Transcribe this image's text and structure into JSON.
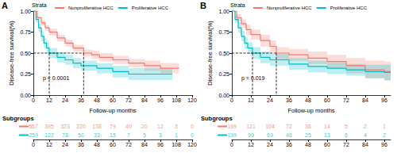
{
  "chart_data": [
    {
      "type": "line",
      "panel": "A",
      "line_style": "step",
      "legend": "top",
      "legend_title": "Strata",
      "grid": false,
      "y_label": "Disease-free survival(%)",
      "x_label": "Follow-up months",
      "xlim": [
        0,
        120
      ],
      "xticks": [
        0,
        12,
        24,
        36,
        48,
        60,
        72,
        84,
        96,
        108,
        120
      ],
      "ylim": [
        0,
        1
      ],
      "yticks": [
        {
          "value": 0,
          "label": "0.00"
        },
        {
          "value": 0.25,
          "label": "0.25"
        },
        {
          "value": 0.5,
          "label": "0.50"
        },
        {
          "value": 0.75,
          "label": "0.75"
        },
        {
          "value": 1,
          "label": "1.00"
        }
      ],
      "p_value": "p < 0.0001",
      "median_y": 0.5,
      "risk_table_title": "Subgroups",
      "series": [
        {
          "name": "Nonproliferative HCC",
          "color": "#f8766d",
          "x": [
            0,
            3,
            6,
            9,
            12,
            18,
            24,
            30,
            38,
            44,
            50,
            60,
            72,
            84,
            96,
            110
          ],
          "values": [
            1,
            0.92,
            0.86,
            0.8,
            0.75,
            0.68,
            0.62,
            0.56,
            0.5,
            0.48,
            0.45,
            0.42,
            0.38,
            0.35,
            0.32,
            0.32
          ],
          "lower": [
            1,
            0.9,
            0.83,
            0.77,
            0.71,
            0.64,
            0.58,
            0.52,
            0.46,
            0.43,
            0.4,
            0.37,
            0.33,
            0.29,
            0.26,
            0.26
          ],
          "upper": [
            1,
            0.94,
            0.89,
            0.83,
            0.79,
            0.72,
            0.66,
            0.6,
            0.54,
            0.53,
            0.5,
            0.47,
            0.43,
            0.41,
            0.38,
            0.38
          ],
          "median": 38,
          "at_risk": [
            557,
            395,
            323,
            220,
            138,
            79,
            40,
            20,
            12,
            3,
            0
          ]
        },
        {
          "name": "Proliferative HCC",
          "color": "#00bfc4",
          "x": [
            0,
            2,
            4,
            6,
            8,
            10,
            12,
            18,
            24,
            30,
            36,
            48,
            60,
            72,
            84,
            96,
            105
          ],
          "values": [
            1,
            0.9,
            0.8,
            0.7,
            0.62,
            0.56,
            0.5,
            0.45,
            0.42,
            0.38,
            0.35,
            0.32,
            0.28,
            0.25,
            0.25,
            0.25,
            0.25
          ],
          "lower": [
            1,
            0.86,
            0.75,
            0.64,
            0.56,
            0.5,
            0.44,
            0.39,
            0.36,
            0.32,
            0.29,
            0.26,
            0.21,
            0.18,
            0.18,
            0.18,
            0.18
          ],
          "upper": [
            1,
            0.94,
            0.85,
            0.76,
            0.68,
            0.62,
            0.56,
            0.51,
            0.48,
            0.44,
            0.41,
            0.38,
            0.35,
            0.32,
            0.32,
            0.32,
            0.32
          ],
          "median": 12,
          "at_risk": [
            259,
            122,
            78,
            50,
            33,
            15,
            7,
            5,
            3,
            1,
            0
          ]
        }
      ]
    },
    {
      "type": "line",
      "panel": "B",
      "line_style": "step",
      "legend": "top",
      "legend_title": "Strata",
      "grid": false,
      "y_label": "Disease-free survival(%)",
      "x_label": "Follow-up months",
      "xlim": [
        0,
        100
      ],
      "xticks": [
        0,
        12,
        24,
        36,
        48,
        60,
        72,
        84,
        96
      ],
      "ylim": [
        0,
        1
      ],
      "yticks": [
        {
          "value": 0,
          "label": "0.00"
        },
        {
          "value": 0.25,
          "label": "0.25"
        },
        {
          "value": 0.5,
          "label": "0.50"
        },
        {
          "value": 0.75,
          "label": "0.75"
        },
        {
          "value": 1,
          "label": "1.00"
        }
      ],
      "p_value": "p = 0.019",
      "median_y": 0.5,
      "risk_table_title": "Subgroups",
      "series": [
        {
          "name": "Nonproliferative HCC",
          "color": "#f8766d",
          "x": [
            0,
            3,
            6,
            9,
            12,
            18,
            24,
            28,
            36,
            48,
            60,
            72,
            84,
            96,
            100
          ],
          "values": [
            1,
            0.92,
            0.85,
            0.78,
            0.72,
            0.65,
            0.58,
            0.5,
            0.48,
            0.44,
            0.4,
            0.35,
            0.3,
            0.28,
            0.28
          ],
          "lower": [
            1,
            0.88,
            0.8,
            0.72,
            0.66,
            0.58,
            0.51,
            0.43,
            0.41,
            0.37,
            0.32,
            0.26,
            0.2,
            0.17,
            0.17
          ],
          "upper": [
            1,
            0.96,
            0.9,
            0.84,
            0.78,
            0.72,
            0.65,
            0.57,
            0.55,
            0.52,
            0.48,
            0.44,
            0.41,
            0.4,
            0.4
          ],
          "median": 28,
          "at_risk": [
            199,
            121,
            104,
            72,
            36,
            14,
            5,
            2,
            1
          ]
        },
        {
          "name": "Proliferative HCC",
          "color": "#00bfc4",
          "x": [
            0,
            2,
            4,
            6,
            8,
            10,
            13,
            18,
            24,
            36,
            48,
            60,
            72,
            84,
            96,
            100
          ],
          "values": [
            1,
            0.9,
            0.8,
            0.7,
            0.62,
            0.56,
            0.5,
            0.45,
            0.42,
            0.37,
            0.34,
            0.32,
            0.3,
            0.28,
            0.27,
            0.27
          ],
          "lower": [
            1,
            0.86,
            0.74,
            0.64,
            0.55,
            0.49,
            0.43,
            0.38,
            0.35,
            0.3,
            0.27,
            0.25,
            0.23,
            0.2,
            0.18,
            0.18
          ],
          "upper": [
            1,
            0.94,
            0.86,
            0.76,
            0.69,
            0.63,
            0.57,
            0.52,
            0.49,
            0.44,
            0.41,
            0.39,
            0.37,
            0.36,
            0.36,
            0.36
          ],
          "median": 13,
          "at_risk": [
            199,
            99,
            69,
            46,
            25,
            13,
            6,
            4,
            2
          ]
        }
      ]
    }
  ]
}
